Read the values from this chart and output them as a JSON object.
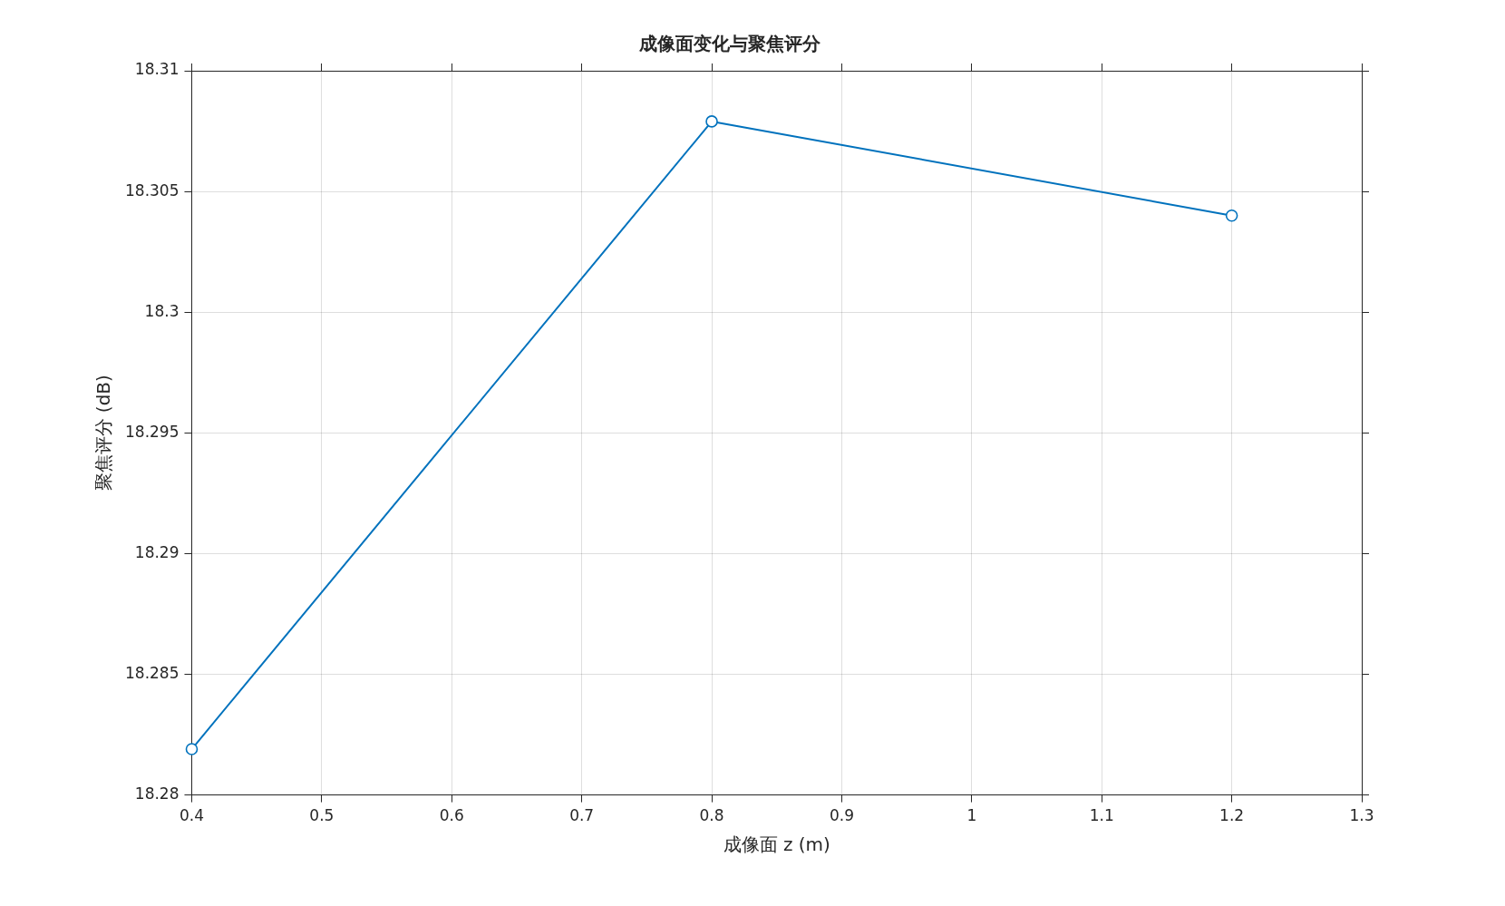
{
  "chart_data": {
    "type": "line",
    "title": "成像面变化与聚焦评分",
    "xlabel": "成像面 z (m)",
    "ylabel": "聚焦评分 (dB)",
    "x": [
      0.4,
      0.8,
      1.2
    ],
    "series": [
      {
        "color": "#0072bd",
        "values": [
          18.2819,
          18.3079,
          18.304
        ]
      }
    ],
    "xlim": [
      0.4,
      1.3
    ],
    "xticks": [
      0.4,
      0.5,
      0.6,
      0.7,
      0.8,
      0.9,
      1,
      1.1,
      1.2,
      1.3
    ],
    "ylim": [
      18.28,
      18.31
    ],
    "yticks": [
      18.28,
      18.285,
      18.29,
      18.295,
      18.3,
      18.305,
      18.31
    ],
    "grid": true,
    "legend": false,
    "marker": "circle",
    "line_style": "solid"
  }
}
